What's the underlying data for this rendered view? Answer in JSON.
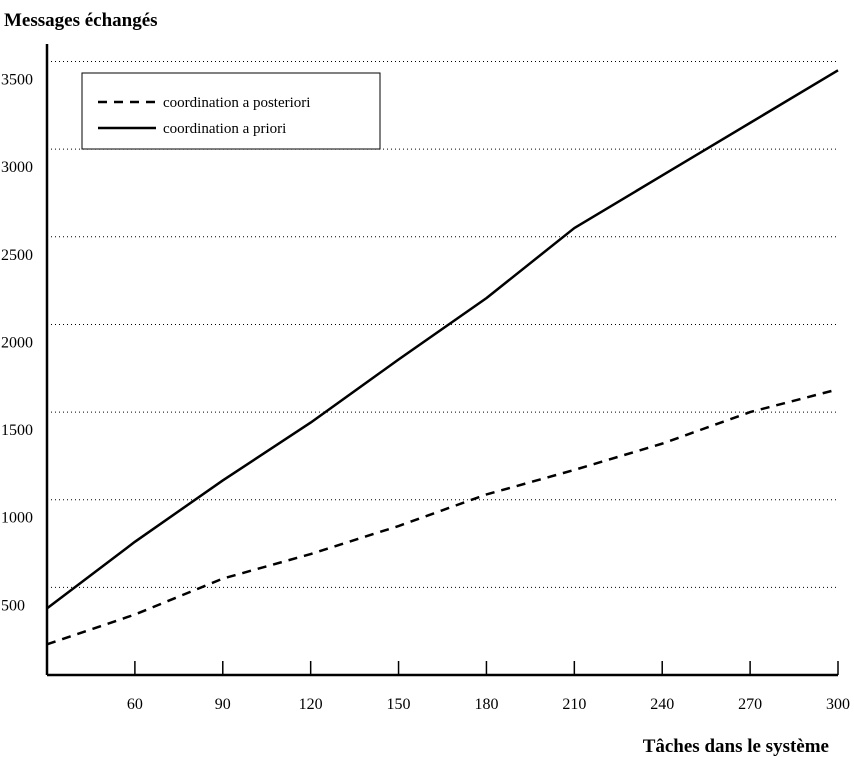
{
  "chart_data": {
    "type": "line",
    "ylabel": "Messages échangés",
    "xlabel": "Tâches dans le système",
    "x": [
      30,
      60,
      90,
      120,
      150,
      180,
      210,
      240,
      270,
      300
    ],
    "xticks": [
      60,
      90,
      120,
      150,
      180,
      210,
      240,
      270,
      300
    ],
    "yticks": [
      500,
      1000,
      1500,
      2000,
      2500,
      3000,
      3500
    ],
    "xlim": [
      30,
      300
    ],
    "ylim": [
      0,
      3600
    ],
    "grid": "horizontal dotted",
    "legend_position": "top-left",
    "series": [
      {
        "name": "coordination a posteriori",
        "style": "dashed",
        "color": "#000000",
        "values": [
          175,
          345,
          550,
          690,
          850,
          1030,
          1170,
          1320,
          1500,
          1630
        ]
      },
      {
        "name": "coordination a priori",
        "style": "solid",
        "color": "#000000",
        "values": [
          380,
          760,
          1110,
          1440,
          1800,
          2150,
          2550,
          2850,
          3150,
          3450
        ]
      }
    ]
  }
}
